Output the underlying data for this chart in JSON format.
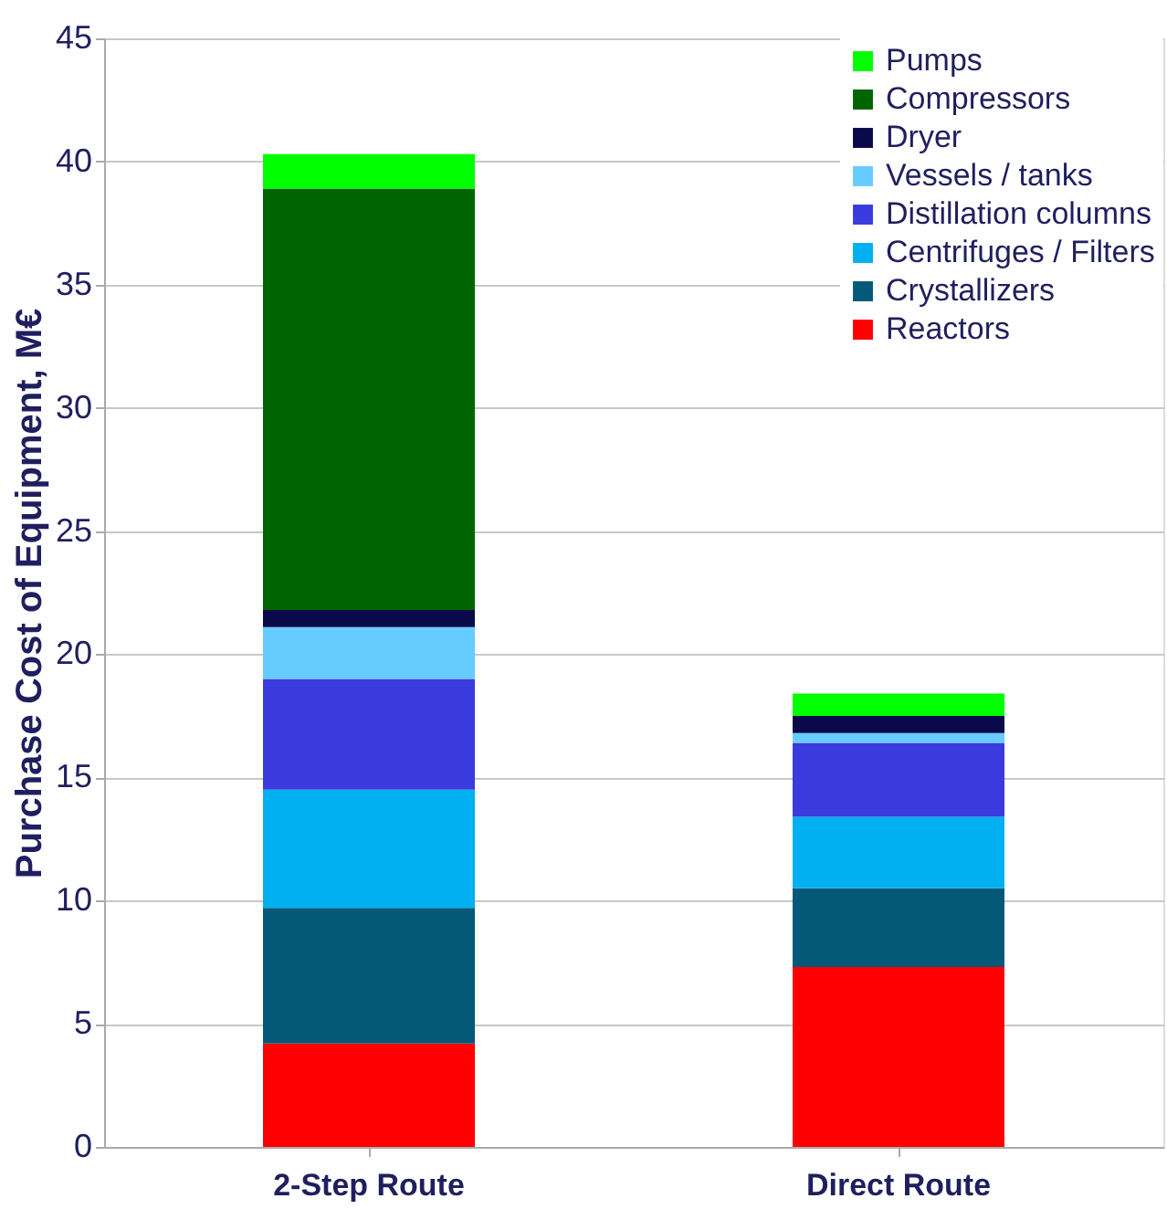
{
  "chart_data": {
    "type": "bar",
    "stacked": true,
    "ylabel": "Purchase Cost of Equipment, M€",
    "categories": [
      "2-Step Route",
      "Direct Route"
    ],
    "series": [
      {
        "name": "Reactors",
        "color": "#ff0000",
        "values": [
          4.2,
          7.3
        ]
      },
      {
        "name": "Crystallizers",
        "color": "#045878",
        "values": [
          5.5,
          3.2
        ]
      },
      {
        "name": "Centrifuges / Filters",
        "color": "#00b0f0",
        "values": [
          4.8,
          2.9
        ]
      },
      {
        "name": "Distillation columns",
        "color": "#3a3adf",
        "values": [
          4.5,
          3.0
        ]
      },
      {
        "name": "Vessels / tanks",
        "color": "#66ccff",
        "values": [
          2.1,
          0.4
        ]
      },
      {
        "name": "Dryer",
        "color": "#0a0a4a",
        "values": [
          0.7,
          0.7
        ]
      },
      {
        "name": "Compressors",
        "color": "#006400",
        "values": [
          17.1,
          0
        ]
      },
      {
        "name": "Pumps",
        "color": "#00ff00",
        "values": [
          1.4,
          0.9
        ]
      }
    ],
    "ylim": [
      0,
      45
    ],
    "yticks": [
      0,
      5,
      10,
      15,
      20,
      25,
      30,
      35,
      40,
      45
    ],
    "grid": "y",
    "legend": "top right"
  }
}
